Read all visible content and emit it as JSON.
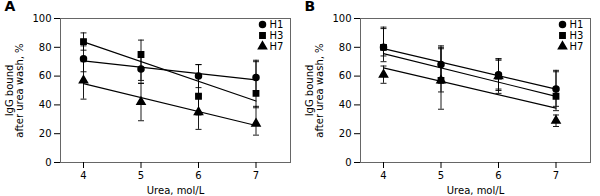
{
  "chart_data": [
    {
      "type": "scatter",
      "title": "A",
      "xlabel": "Urea, mol/L",
      "ylabel": "IgG bound\nafter urea wash, %",
      "x": [
        4,
        5,
        6,
        7
      ],
      "xlim": [
        3.6,
        7.6
      ],
      "xticks": [
        4,
        5,
        6,
        7
      ],
      "ylim": [
        0,
        100
      ],
      "yticks": [
        0,
        20,
        40,
        60,
        80,
        100
      ],
      "grid": false,
      "legend": "upper right",
      "series": [
        {
          "name": "H1",
          "color": "#000000",
          "marker": "circle",
          "values": [
            72,
            65,
            60,
            59
          ],
          "error_low": [
            9,
            8,
            8,
            12
          ],
          "error_high": [
            9,
            8,
            8,
            12
          ],
          "trend": {
            "x": [
              4,
              7
            ],
            "values": [
              70.6,
              57.4
            ]
          }
        },
        {
          "name": "H3",
          "color": "#000000",
          "marker": "square",
          "values": [
            84,
            75,
            46,
            48
          ],
          "error_low": [
            6,
            20,
            13,
            10
          ],
          "error_high": [
            6,
            10,
            22,
            22
          ],
          "trend": {
            "x": [
              4,
              7
            ],
            "values": [
              83.8,
              42.7
            ]
          }
        },
        {
          "name": "H7",
          "color": "#000000",
          "marker": "triangle",
          "values": [
            57,
            42,
            35,
            27
          ],
          "error_low": [
            13,
            13,
            12,
            8
          ],
          "error_high": [
            13,
            13,
            12,
            12
          ],
          "trend": {
            "x": [
              4,
              7
            ],
            "values": [
              54.8,
              25.7
            ]
          }
        }
      ]
    },
    {
      "type": "scatter",
      "title": "B",
      "xlabel": "Urea, mol/L",
      "ylabel": "IgG bound\nafter urea wash, %",
      "x": [
        4,
        5,
        6,
        7
      ],
      "xlim": [
        3.6,
        7.6
      ],
      "xticks": [
        4,
        5,
        6,
        7
      ],
      "ylim": [
        0,
        100
      ],
      "yticks": [
        0,
        20,
        40,
        60,
        80,
        100
      ],
      "grid": false,
      "legend": "upper right",
      "series": [
        {
          "name": "H1",
          "color": "#000000",
          "marker": "circle",
          "values": [
            80,
            68,
            61,
            51
          ],
          "error_low": [
            6,
            10,
            10,
            12
          ],
          "error_high": [
            13,
            12,
            10,
            12
          ],
          "trend": {
            "x": [
              4,
              7
            ],
            "values": [
              79.1,
              50.9
            ]
          }
        },
        {
          "name": "H3",
          "color": "#000000",
          "marker": "square",
          "values": [
            80,
            57,
            60,
            46
          ],
          "error_low": [
            10,
            8,
            12,
            10
          ],
          "error_high": [
            14,
            24,
            12,
            18
          ],
          "trend": {
            "x": [
              4,
              7
            ],
            "values": [
              75.6,
              45.9
            ]
          }
        },
        {
          "name": "H7",
          "color": "#000000",
          "marker": "triangle",
          "values": [
            61,
            57,
            60,
            29
          ],
          "error_low": [
            6,
            20,
            10,
            4
          ],
          "error_high": [
            6,
            22,
            12,
            4
          ],
          "trend": {
            "x": [
              4,
              7
            ],
            "values": [
              65.7,
              37.8
            ]
          }
        }
      ]
    }
  ]
}
